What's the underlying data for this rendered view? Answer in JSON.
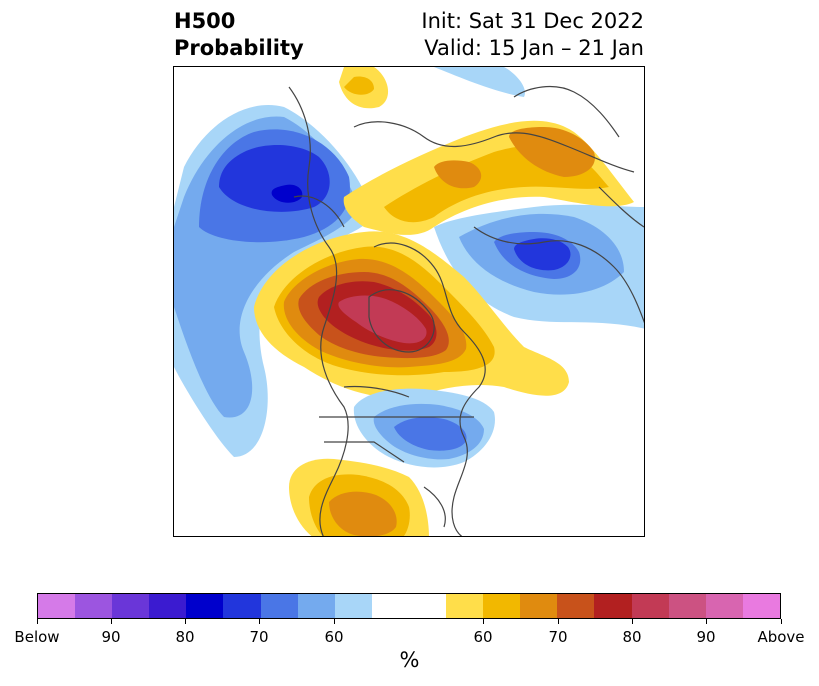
{
  "title": {
    "line1": "H500",
    "line2": "Probability"
  },
  "info": {
    "init": "Init: Sat 31 Dec 2022",
    "valid": "Valid: 15 Jan – 21 Jan"
  },
  "colorbar": {
    "colors": [
      "#d57ae8",
      "#9c55e0",
      "#6a36d8",
      "#3b1bd0",
      "#0000cc",
      "#2236dc",
      "#4a76e6",
      "#74aaee",
      "#a8d6f8",
      "#ffffff",
      "#ffde4a",
      "#f2b800",
      "#e08b0f",
      "#c8521b",
      "#b22020",
      "#c23a55",
      "#cc5282",
      "#d865b0",
      "#e97ae0"
    ],
    "labels": [
      "Below",
      "90",
      "80",
      "70",
      "60",
      "60",
      "70",
      "80",
      "90",
      "Above"
    ],
    "unit": "%"
  },
  "map": {
    "colors": {
      "light_blue": "#a8d6f8",
      "blue1": "#74aaee",
      "blue2": "#4a76e6",
      "blue3": "#2236dc",
      "blue4": "#0000cc",
      "yellow": "#ffde4a",
      "gold": "#f2b800",
      "orange": "#e08b0f",
      "dark_orange": "#c8521b",
      "red": "#b22020",
      "crimson": "#c23a55"
    }
  }
}
